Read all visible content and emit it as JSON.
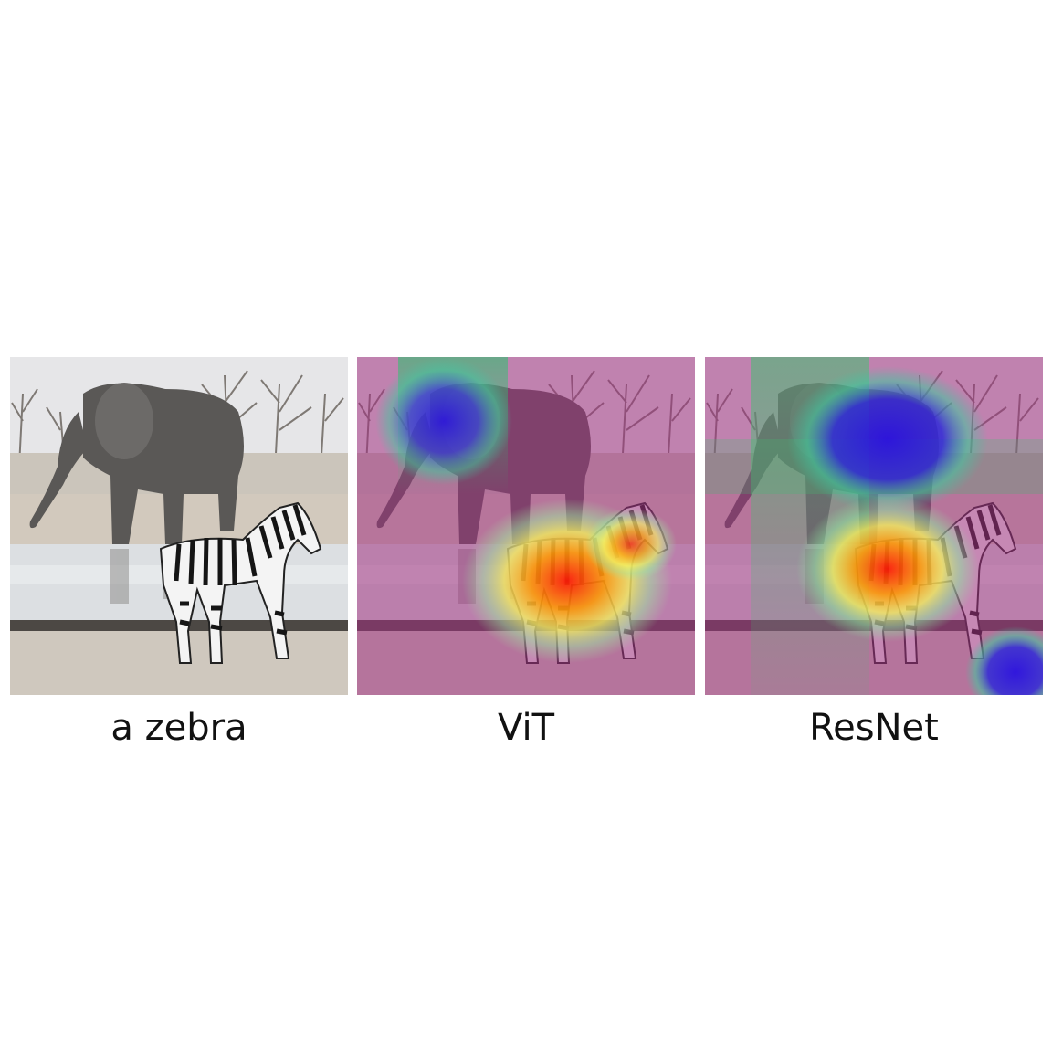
{
  "figure": {
    "panels": [
      {
        "caption": "a zebra",
        "content": "original photo: elephant and zebra at a waterhole"
      },
      {
        "caption": "ViT",
        "content": "attention heatmap overlay"
      },
      {
        "caption": "ResNet",
        "content": "attention heatmap overlay"
      }
    ]
  },
  "colors": {
    "sky": "#e8e8ea",
    "ground": "#c8c2b8",
    "water": "#d9dde0",
    "overlay_low": "#a0307f",
    "overlay_high": "#ff2a00",
    "blue_spot": "#2a1adf"
  }
}
